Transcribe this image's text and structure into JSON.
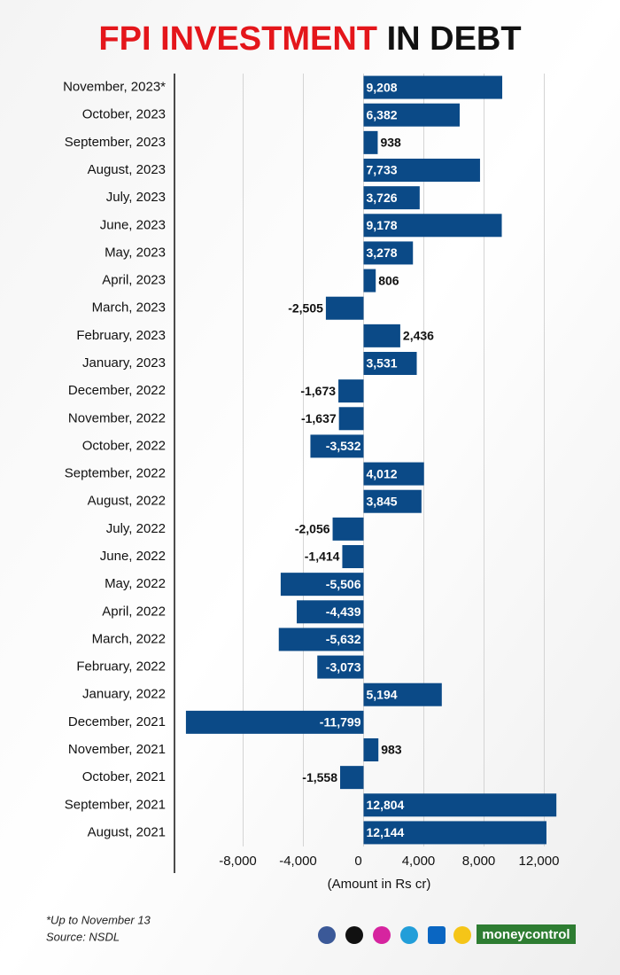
{
  "chart_data": {
    "type": "bar",
    "orientation": "horizontal",
    "title": [
      "FPI INVESTMENT",
      "IN DEBT"
    ],
    "categories": [
      "November, 2023*",
      "October, 2023",
      "September, 2023",
      "August, 2023",
      "July, 2023",
      "June, 2023",
      "May, 2023",
      "April, 2023",
      "March, 2023",
      "February, 2023",
      "January, 2023",
      "December, 2022",
      "November, 2022",
      "October, 2022",
      "September, 2022",
      "August, 2022",
      "July, 2022",
      "June, 2022",
      "May, 2022",
      "April, 2022",
      "March, 2022",
      "February, 2022",
      "January, 2022",
      "December, 2021",
      "November, 2021",
      "October, 2021",
      "September, 2021",
      "August, 2021"
    ],
    "values": [
      9208,
      6382,
      938,
      7733,
      3726,
      9178,
      3278,
      806,
      -2505,
      2436,
      3531,
      -1673,
      -1637,
      -3532,
      4012,
      3845,
      -2056,
      -1414,
      -5506,
      -4439,
      -5632,
      -3073,
      5194,
      -11799,
      983,
      -1558,
      12804,
      12144
    ],
    "value_labels": [
      "9,208",
      "6,382",
      "938",
      "7,733",
      "3,726",
      "9,178",
      "3,278",
      "806",
      "-2,505",
      "2,436",
      "3,531",
      "-1,673",
      "-1,637",
      "-3,532",
      "4,012",
      "3,845",
      "-2,056",
      "-1,414",
      "-5,506",
      "-4,439",
      "-5,632",
      "-3,073",
      "5,194",
      "-11,799",
      "983",
      "-1,558",
      "12,804",
      "12,144"
    ],
    "color": "#0b4a87",
    "xlim": [
      -12500,
      13500
    ],
    "xticks": [
      {
        "value": -8000,
        "label": "-8,000"
      },
      {
        "value": -4000,
        "label": "-4,000"
      },
      0,
      {
        "value": 4000,
        "label": "4,000"
      },
      {
        "value": 8000,
        "label": "8,000"
      },
      {
        "value": 12000,
        "label": "12,000"
      }
    ],
    "grid": true,
    "x_label": "(Amount in Rs cr)",
    "footnote": "*Up to November 13",
    "source": "Source: NSDL",
    "brand": "moneycontrol"
  }
}
